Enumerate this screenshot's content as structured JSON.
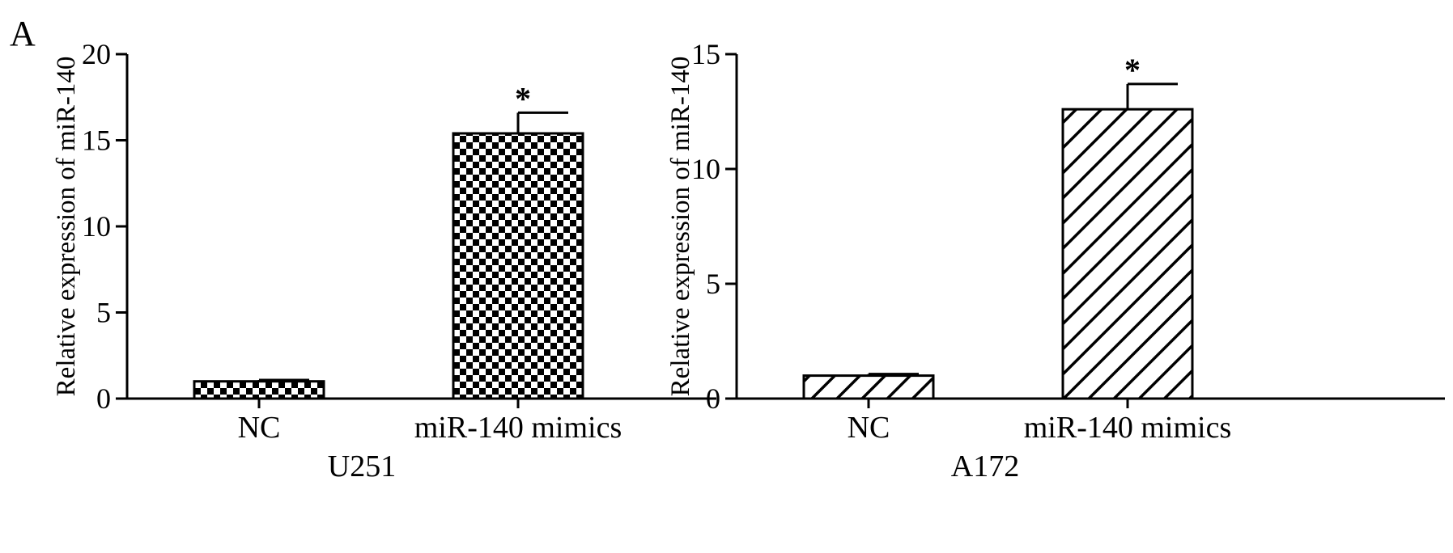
{
  "figure": {
    "panel_letter": "A"
  },
  "colors": {
    "ink": "#000000",
    "background": "#ffffff"
  },
  "chart_data": [
    {
      "type": "bar",
      "title": "",
      "xlabel": "U251",
      "ylabel": "Relative expression of miR-140",
      "categories": [
        "NC",
        "miR-140 mimics"
      ],
      "values": [
        1.0,
        15.4
      ],
      "errors": [
        0.08,
        1.2
      ],
      "significance": [
        "",
        "*"
      ],
      "bar_patterns": [
        "checker",
        "checker"
      ],
      "ylim": [
        0,
        20
      ],
      "yticks": [
        0,
        5,
        10,
        15,
        20
      ],
      "grid": false
    },
    {
      "type": "bar",
      "title": "",
      "xlabel": "A172",
      "ylabel": "Relative expression of miR-140",
      "categories": [
        "NC",
        "miR-140 mimics"
      ],
      "values": [
        1.0,
        12.6
      ],
      "errors": [
        0.07,
        1.1
      ],
      "significance": [
        "",
        "*"
      ],
      "bar_patterns": [
        "diagonal",
        "diagonal"
      ],
      "ylim": [
        0,
        15
      ],
      "yticks": [
        0,
        5,
        10,
        15
      ],
      "grid": false
    }
  ]
}
